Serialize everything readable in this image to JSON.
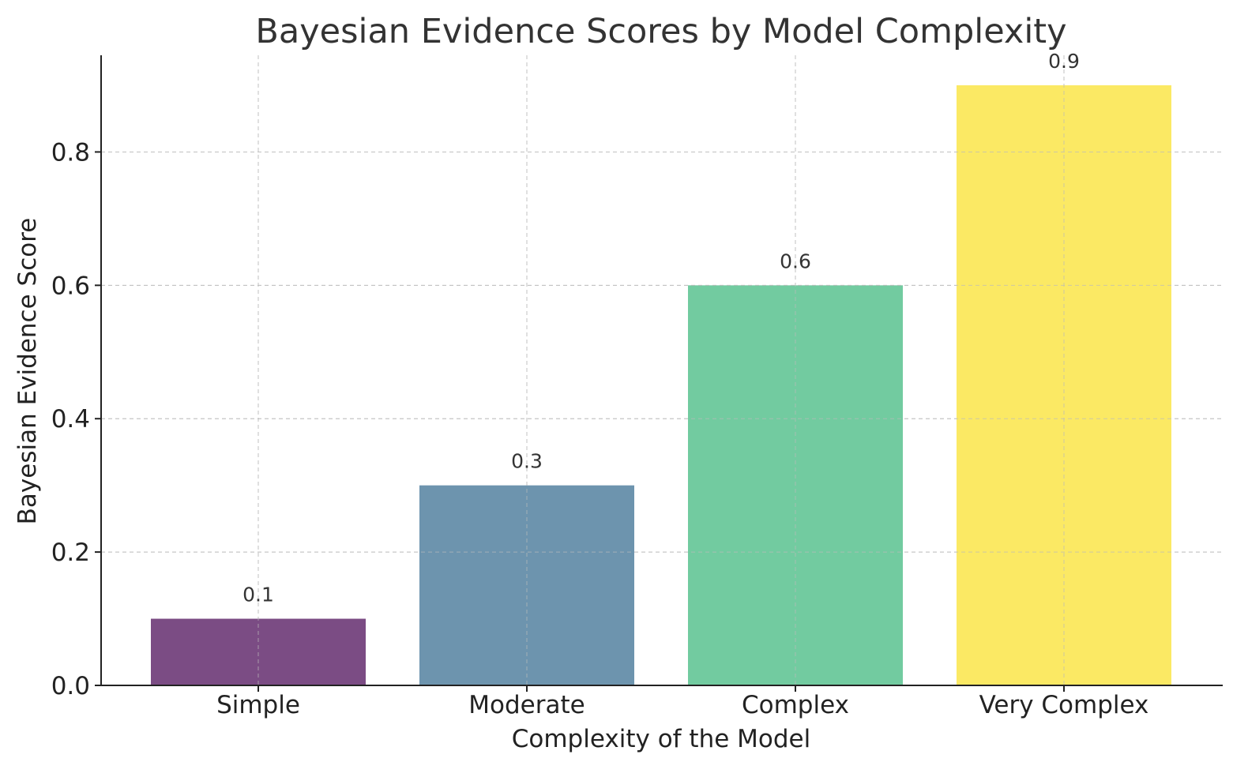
{
  "chart_data": {
    "type": "bar",
    "title": "Bayesian Evidence Scores by Model Complexity",
    "xlabel": "Complexity of the Model",
    "ylabel": "Bayesian Evidence Score",
    "categories": [
      "Simple",
      "Moderate",
      "Complex",
      "Very Complex"
    ],
    "values": [
      0.1,
      0.3,
      0.6,
      0.9
    ],
    "value_labels": [
      "0.1",
      "0.3",
      "0.6",
      "0.9"
    ],
    "colors": [
      "#7b4c84",
      "#6d94ae",
      "#72cba0",
      "#fbe964"
    ],
    "ylim": [
      0,
      0.945
    ],
    "yticks": [
      0.0,
      0.2,
      0.4,
      0.6,
      0.8
    ],
    "ytick_labels": [
      "0.0",
      "0.2",
      "0.4",
      "0.6",
      "0.8"
    ],
    "grid": true
  }
}
